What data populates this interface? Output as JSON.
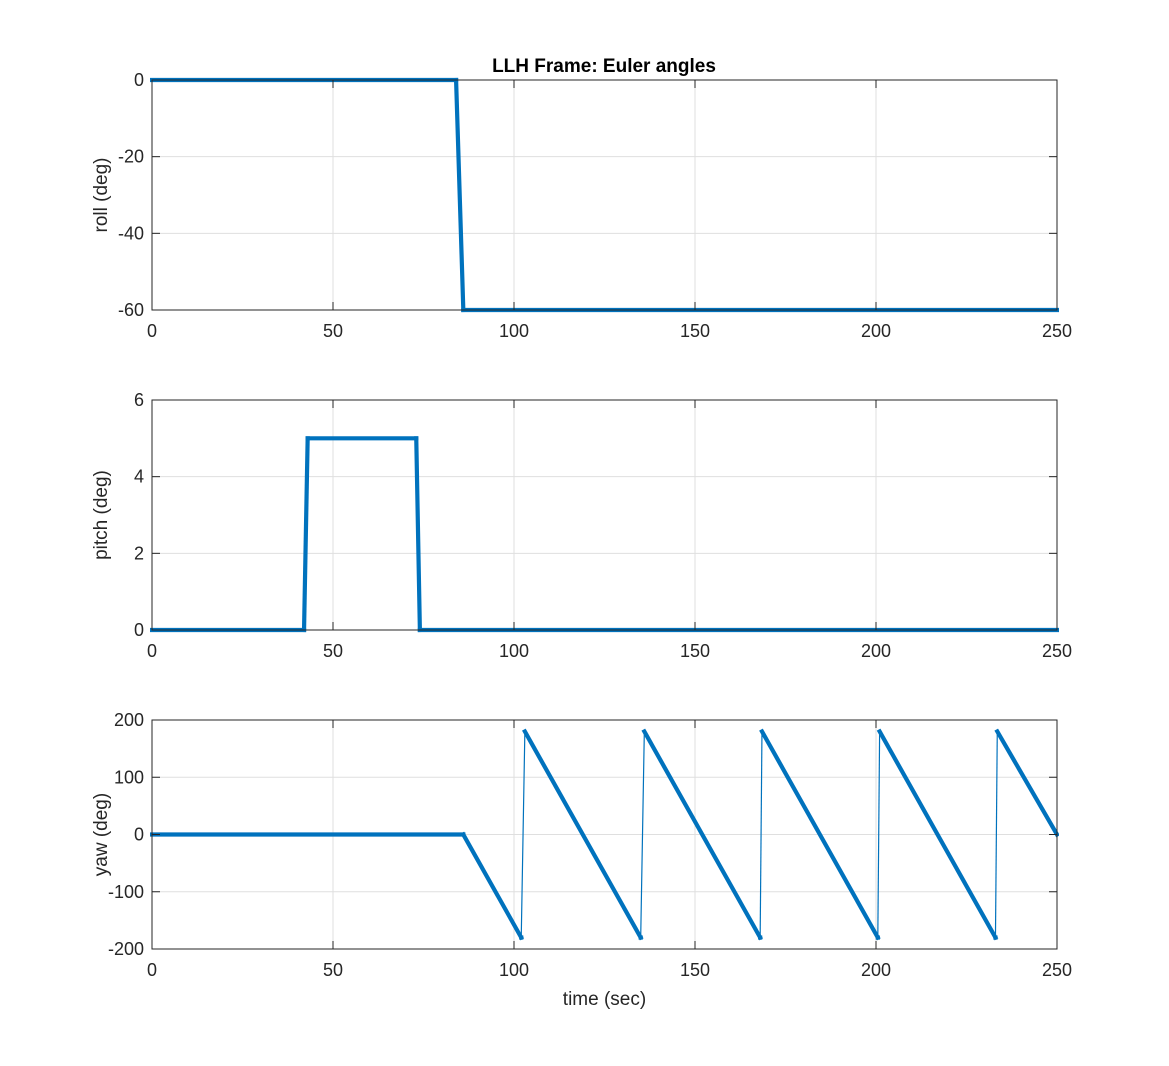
{
  "figure": {
    "title": "LLH Frame: Euler angles"
  },
  "chart_data": [
    {
      "type": "line",
      "title": "LLH Frame: Euler angles",
      "xlabel": "",
      "ylabel": "roll (deg)",
      "xlim": [
        0,
        250
      ],
      "ylim": [
        -60,
        0
      ],
      "xticks": [
        0,
        50,
        100,
        150,
        200,
        250
      ],
      "yticks": [
        -60,
        -40,
        -20,
        0
      ],
      "grid": true,
      "color": "#0072BD",
      "series": [
        {
          "x": [
            0,
            84,
            86,
            250
          ],
          "y": [
            0,
            0,
            -60,
            -60
          ]
        }
      ]
    },
    {
      "type": "line",
      "title": "",
      "xlabel": "",
      "ylabel": "pitch (deg)",
      "xlim": [
        0,
        250
      ],
      "ylim": [
        0,
        6
      ],
      "xticks": [
        0,
        50,
        100,
        150,
        200,
        250
      ],
      "yticks": [
        0,
        2,
        4,
        6
      ],
      "grid": true,
      "color": "#0072BD",
      "series": [
        {
          "x": [
            0,
            42,
            43,
            73,
            74,
            250
          ],
          "y": [
            0,
            0,
            5,
            5,
            0,
            0
          ]
        }
      ]
    },
    {
      "type": "line",
      "title": "",
      "xlabel": "time (sec)",
      "ylabel": "yaw (deg)",
      "xlim": [
        0,
        250
      ],
      "ylim": [
        -200,
        200
      ],
      "xticks": [
        0,
        50,
        100,
        150,
        200,
        250
      ],
      "yticks": [
        -200,
        -100,
        0,
        100,
        200
      ],
      "grid": true,
      "color": "#0072BD",
      "series": [
        {
          "x": [
            0,
            86,
            102,
            102,
            103,
            135,
            135,
            136,
            168,
            168,
            168.5,
            200.5,
            200.5,
            201,
            233,
            233,
            233.5,
            250
          ],
          "y": [
            0,
            0,
            -180,
            -180,
            180,
            -180,
            -180,
            180,
            -180,
            -180,
            180,
            -180,
            -180,
            180,
            -180,
            -180,
            180,
            0
          ]
        }
      ]
    }
  ]
}
